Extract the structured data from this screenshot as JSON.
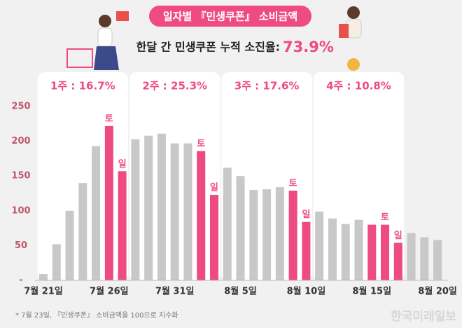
{
  "chart_data": {
    "type": "bar",
    "title": "일자별 『민생쿠폰』 소비금액",
    "subtitle": "한달 간 민생쿠폰 누적 소진율:",
    "highlight": "73.9%",
    "footnote": "* 7월 23일, 『민생쿠폰』 소비금액을 100으로 지수화",
    "watermark": "한국미래일보",
    "categories": [
      "7월 21일",
      null,
      null,
      null,
      null,
      "7월 26일",
      null,
      null,
      null,
      null,
      "7월 31일",
      null,
      null,
      null,
      null,
      "8월 5일",
      null,
      null,
      null,
      null,
      "8월 10일",
      null,
      null,
      null,
      null,
      "8월 15일",
      null,
      null,
      null,
      null,
      "8월 20일"
    ],
    "values": [
      9,
      52,
      100,
      140,
      193,
      222,
      157,
      203,
      208,
      211,
      197,
      197,
      186,
      123,
      162,
      150,
      130,
      131,
      134,
      129,
      84,
      99,
      89,
      81,
      87,
      80,
      80,
      54,
      68,
      62,
      58
    ],
    "colors": [
      "#c8c8c8",
      "#c8c8c8",
      "#c8c8c8",
      "#c8c8c8",
      "#c8c8c8",
      "#ee4a84",
      "#ee4a84",
      "#c8c8c8",
      "#c8c8c8",
      "#c8c8c8",
      "#c8c8c8",
      "#c8c8c8",
      "#ee4a84",
      "#ee4a84",
      "#c8c8c8",
      "#c8c8c8",
      "#c8c8c8",
      "#c8c8c8",
      "#c8c8c8",
      "#ee4a84",
      "#ee4a84",
      "#c8c8c8",
      "#c8c8c8",
      "#c8c8c8",
      "#c8c8c8",
      "#ee4a84",
      "#ee4a84",
      "#ee4a84",
      "#c8c8c8",
      "#c8c8c8",
      "#c8c8c8"
    ],
    "day_labels": [
      null,
      null,
      null,
      null,
      null,
      "토",
      "일",
      null,
      null,
      null,
      null,
      null,
      "토",
      "일",
      null,
      null,
      null,
      null,
      null,
      "토",
      "일",
      null,
      null,
      null,
      null,
      null,
      "토",
      "일",
      null,
      null,
      null
    ],
    "weeks": [
      {
        "label": "1주 : 16.7%",
        "start": 0,
        "end": 6
      },
      {
        "label": "2주 : 25.3%",
        "start": 7,
        "end": 13
      },
      {
        "label": "3주 : 17.6%",
        "start": 14,
        "end": 20
      },
      {
        "label": "4주 : 10.8%",
        "start": 21,
        "end": 27
      }
    ],
    "ylim": [
      0,
      250
    ],
    "yticks": [
      {
        "value": 0,
        "label": "-"
      },
      50,
      100,
      150,
      200,
      250
    ],
    "grid": false
  }
}
